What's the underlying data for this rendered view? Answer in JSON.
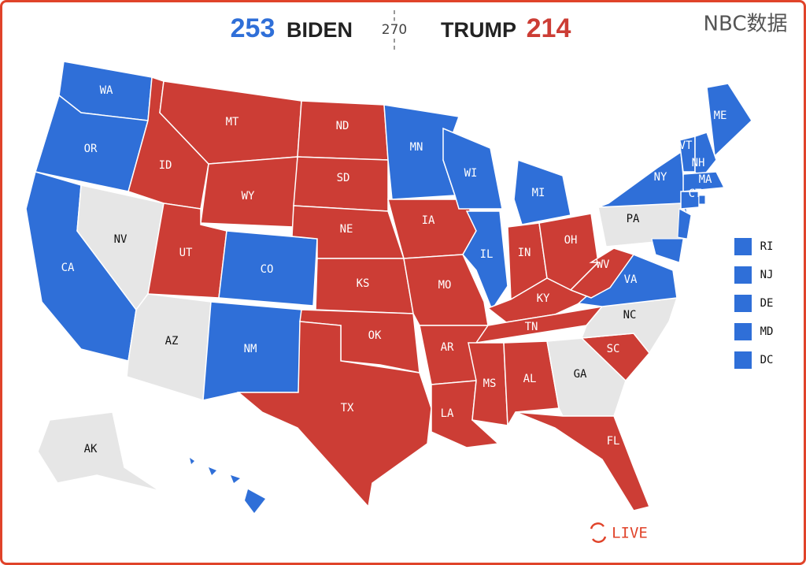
{
  "header": {
    "biden_votes": 253,
    "biden": "BIDEN",
    "threshold": 270,
    "trump": "TRUMP",
    "trump_votes": 214,
    "source": "NBC数据"
  },
  "colors": {
    "dem": "#2f6fd8",
    "rep": "#cc3d35",
    "undecided": "#e6e6e6"
  },
  "states": [
    {
      "label": "WA",
      "party": "dem"
    },
    {
      "label": "OR",
      "party": "dem"
    },
    {
      "label": "CA",
      "party": "dem"
    },
    {
      "label": "NV",
      "party": "undecided"
    },
    {
      "label": "ID",
      "party": "rep"
    },
    {
      "label": "MT",
      "party": "rep"
    },
    {
      "label": "WY",
      "party": "rep"
    },
    {
      "label": "UT",
      "party": "rep"
    },
    {
      "label": "CO",
      "party": "dem"
    },
    {
      "label": "AZ",
      "party": "undecided"
    },
    {
      "label": "NM",
      "party": "dem"
    },
    {
      "label": "ND",
      "party": "rep"
    },
    {
      "label": "SD",
      "party": "rep"
    },
    {
      "label": "NE",
      "party": "rep"
    },
    {
      "label": "KS",
      "party": "rep"
    },
    {
      "label": "OK",
      "party": "rep"
    },
    {
      "label": "TX",
      "party": "rep"
    },
    {
      "label": "MN",
      "party": "dem"
    },
    {
      "label": "IA",
      "party": "rep"
    },
    {
      "label": "MO",
      "party": "rep"
    },
    {
      "label": "AR",
      "party": "rep"
    },
    {
      "label": "LA",
      "party": "rep"
    },
    {
      "label": "WI",
      "party": "dem"
    },
    {
      "label": "IL",
      "party": "dem"
    },
    {
      "label": "MI",
      "party": "dem"
    },
    {
      "label": "IN",
      "party": "rep"
    },
    {
      "label": "OH",
      "party": "rep"
    },
    {
      "label": "KY",
      "party": "rep"
    },
    {
      "label": "TN",
      "party": "rep"
    },
    {
      "label": "MS",
      "party": "rep"
    },
    {
      "label": "AL",
      "party": "rep"
    },
    {
      "label": "GA",
      "party": "undecided"
    },
    {
      "label": "SC",
      "party": "rep"
    },
    {
      "label": "NC",
      "party": "undecided"
    },
    {
      "label": "VA",
      "party": "dem"
    },
    {
      "label": "WV",
      "party": "rep"
    },
    {
      "label": "PA",
      "party": "undecided"
    },
    {
      "label": "NY",
      "party": "dem"
    },
    {
      "label": "FL",
      "party": "rep"
    },
    {
      "label": "ME",
      "party": "dem"
    },
    {
      "label": "VT",
      "party": "dem"
    },
    {
      "label": "NH",
      "party": "dem"
    },
    {
      "label": "MA",
      "party": "dem"
    },
    {
      "label": "CT",
      "party": "dem"
    },
    {
      "label": "AK",
      "party": "undecided"
    }
  ],
  "small_states": [
    {
      "label": "RI",
      "party": "dem"
    },
    {
      "label": "NJ",
      "party": "dem"
    },
    {
      "label": "DE",
      "party": "dem"
    },
    {
      "label": "MD",
      "party": "dem"
    },
    {
      "label": "DC",
      "party": "dem"
    }
  ],
  "live": "LIVE"
}
